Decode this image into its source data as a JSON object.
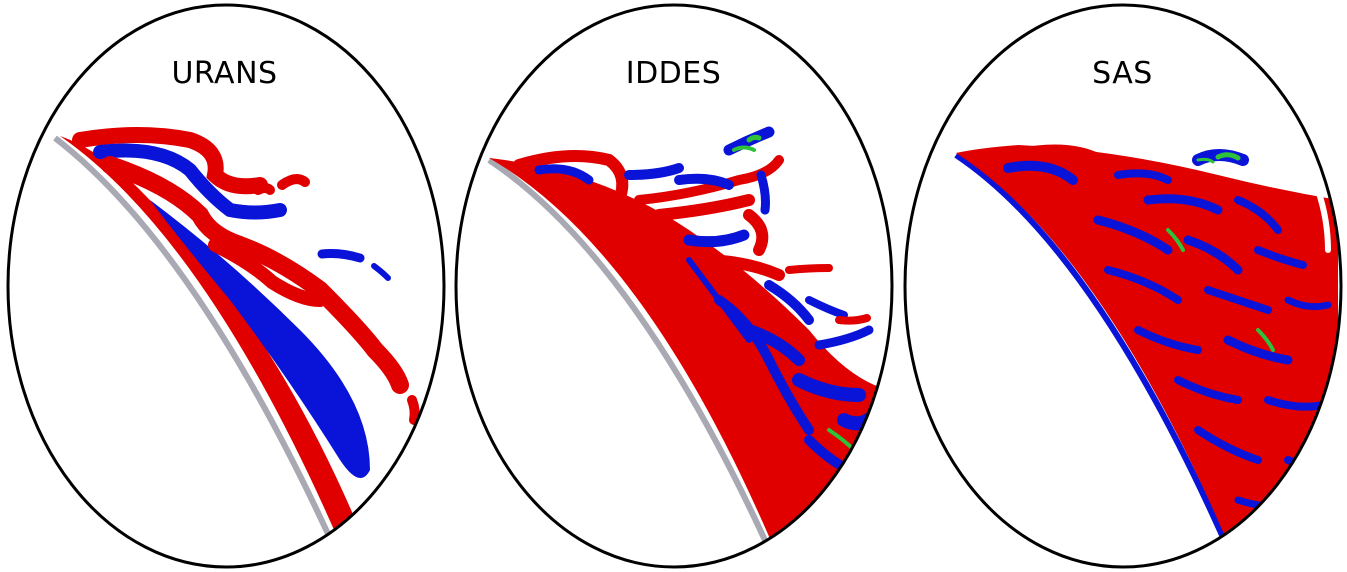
{
  "panels": [
    {
      "label": "URANS"
    },
    {
      "label": "IDDES"
    },
    {
      "label": "SAS"
    }
  ],
  "colors": {
    "positive_vorticity": "#e00000",
    "negative_vorticity": "#0a14d8",
    "intermediate": "#2ec23a",
    "surface": "#a9a9b4",
    "outline": "#000000"
  }
}
